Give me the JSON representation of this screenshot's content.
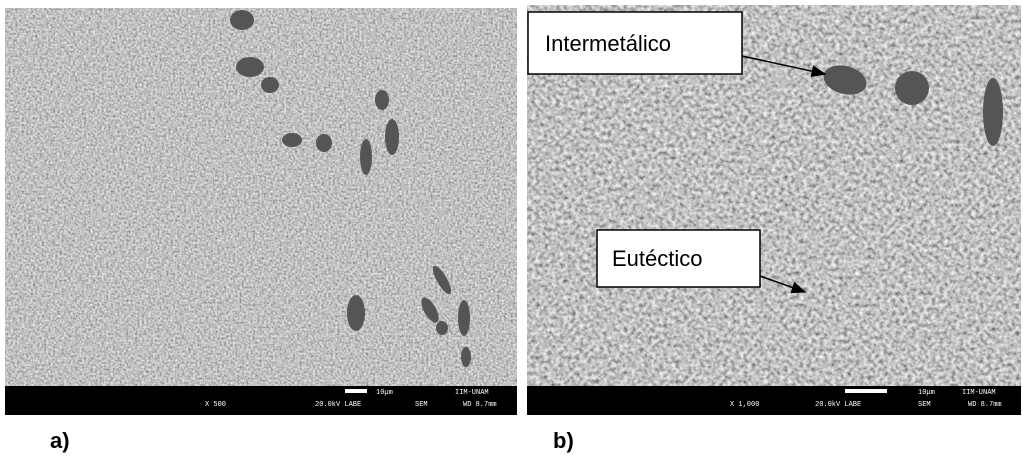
{
  "panels": [
    {
      "label": "a)",
      "magnification": "X 500",
      "voltage": "20.0kV LABE",
      "detector": "SEM",
      "scale": "10µm",
      "institution": "IIM-UNAM",
      "working_distance": "WD 8.7mm"
    },
    {
      "label": "b)",
      "magnification": "X 1,000",
      "voltage": "20.0kV LABE",
      "detector": "SEM",
      "scale": "10µm",
      "institution": "IIM-UNAM",
      "working_distance": "WD 8.7mm"
    }
  ],
  "callouts": [
    "Intermetálico",
    "Eutéctico"
  ]
}
